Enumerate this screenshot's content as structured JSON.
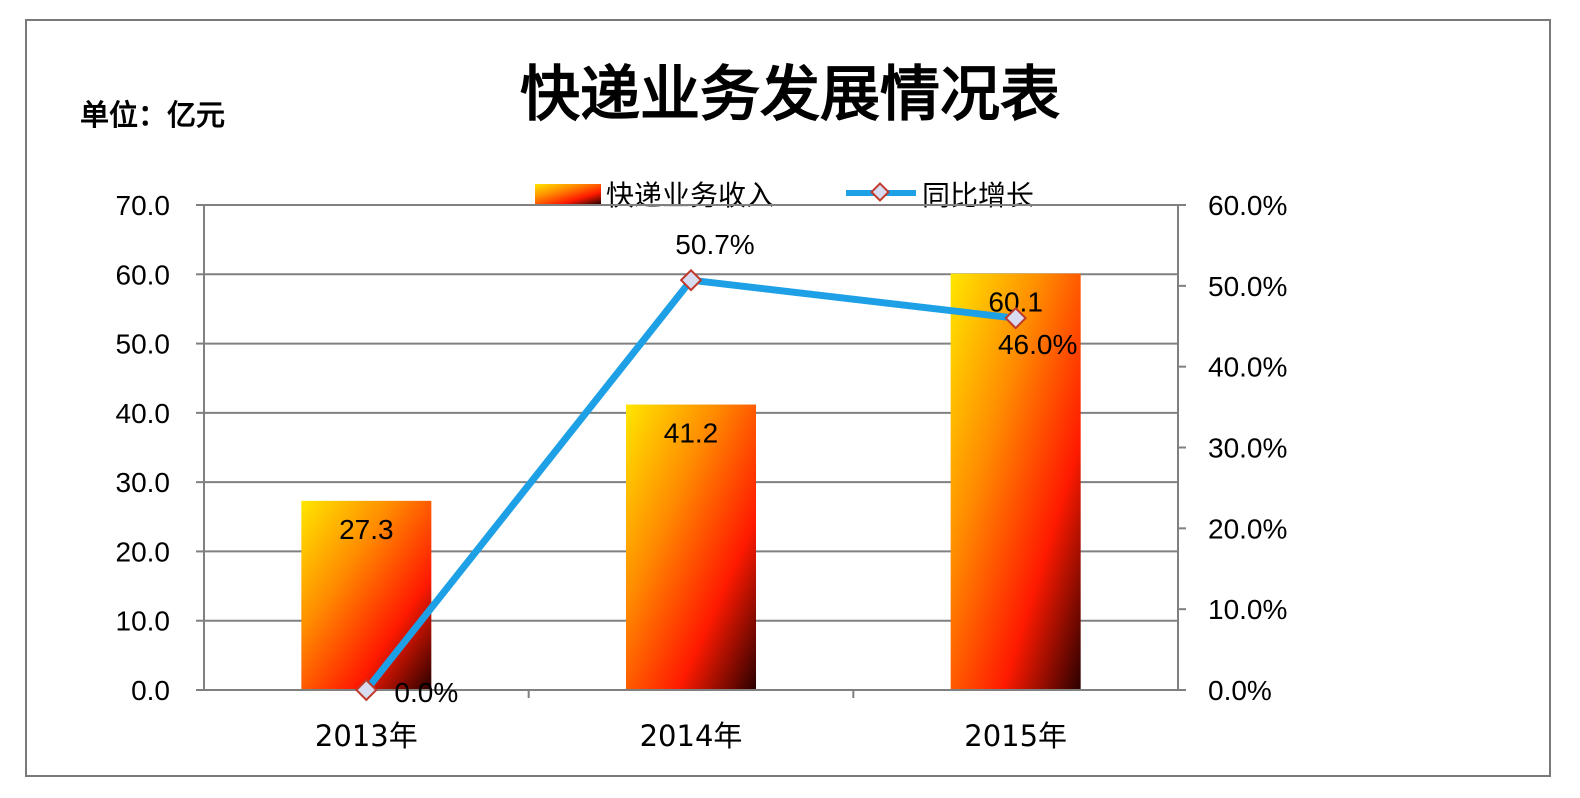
{
  "chart_data": {
    "type": "bar",
    "title": "快递业务发展情况表",
    "unit_label": "单位：亿元",
    "categories": [
      "2013年",
      "2014年",
      "2015年"
    ],
    "series": [
      {
        "name": "快递业务收入",
        "type": "bar",
        "axis": "left",
        "values": [
          27.3,
          41.2,
          60.1
        ],
        "labels": [
          "27.3",
          "41.2",
          "60.1"
        ]
      },
      {
        "name": "同比增长",
        "type": "line",
        "axis": "right",
        "values": [
          0.0,
          50.7,
          46.0
        ],
        "labels": [
          "0.0%",
          "50.7%",
          "46.0%"
        ]
      }
    ],
    "y_left": {
      "range": [
        0,
        70
      ],
      "ticks": [
        0,
        10,
        20,
        30,
        40,
        50,
        60,
        70
      ],
      "tick_labels": [
        "0.0",
        "10.0",
        "20.0",
        "30.0",
        "40.0",
        "50.0",
        "60.0",
        "70.0"
      ]
    },
    "y_right": {
      "range": [
        0,
        60
      ],
      "ticks": [
        0,
        10,
        20,
        30,
        40,
        50,
        60
      ],
      "tick_labels": [
        "0.0%",
        "10.0%",
        "20.0%",
        "30.0%",
        "40.0%",
        "50.0%",
        "60.0%"
      ]
    },
    "grid": true,
    "legend_position": "top-center",
    "colors": {
      "bar_start": "#ffe600",
      "bar_mid1": "#ff8c00",
      "bar_mid2": "#ff1a00",
      "bar_end": "#2a0000",
      "line": "#1ea0e6",
      "marker_fill": "#d7dcf0",
      "marker_stroke": "#c0392b",
      "grid": "#808080",
      "axis": "#808080",
      "frame": "#7a7a7a"
    }
  }
}
